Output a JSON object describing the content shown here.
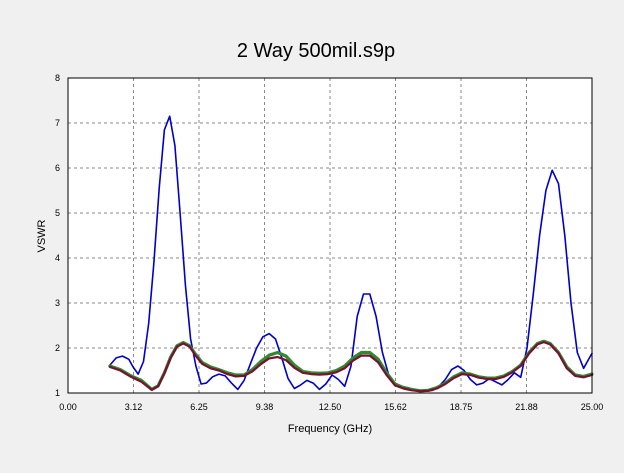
{
  "chart_data": {
    "type": "line",
    "title": "2 Way 500mil.s9p",
    "xlabel": "Frequency (GHz)",
    "ylabel": "VSWR",
    "xlim": [
      0,
      25
    ],
    "ylim": [
      1,
      8
    ],
    "grid": true,
    "x_ticks": [
      "0.00",
      "3.12",
      "6.25",
      "9.38",
      "12.50",
      "15.62",
      "18.75",
      "21.88",
      "25.00"
    ],
    "y_ticks": [
      "1",
      "2",
      "3",
      "4",
      "5",
      "6",
      "7",
      "8"
    ],
    "series": [
      {
        "color": "#0000cc",
        "points": [
          [
            2.0,
            1.62
          ],
          [
            2.3,
            1.78
          ],
          [
            2.6,
            1.82
          ],
          [
            2.9,
            1.75
          ],
          [
            3.1,
            1.58
          ],
          [
            3.35,
            1.42
          ],
          [
            3.6,
            1.7
          ],
          [
            3.85,
            2.55
          ],
          [
            4.1,
            3.9
          ],
          [
            4.35,
            5.55
          ],
          [
            4.6,
            6.85
          ],
          [
            4.85,
            7.15
          ],
          [
            5.1,
            6.5
          ],
          [
            5.35,
            5.0
          ],
          [
            5.6,
            3.4
          ],
          [
            5.85,
            2.2
          ],
          [
            6.1,
            1.6
          ],
          [
            6.35,
            1.2
          ],
          [
            6.6,
            1.22
          ],
          [
            6.9,
            1.36
          ],
          [
            7.2,
            1.42
          ],
          [
            7.5,
            1.38
          ],
          [
            7.8,
            1.22
          ],
          [
            8.1,
            1.08
          ],
          [
            8.4,
            1.28
          ],
          [
            8.7,
            1.65
          ],
          [
            9.0,
            2.0
          ],
          [
            9.3,
            2.25
          ],
          [
            9.6,
            2.32
          ],
          [
            9.9,
            2.2
          ],
          [
            10.2,
            1.78
          ],
          [
            10.5,
            1.32
          ],
          [
            10.8,
            1.1
          ],
          [
            11.1,
            1.18
          ],
          [
            11.4,
            1.28
          ],
          [
            11.7,
            1.22
          ],
          [
            12.0,
            1.08
          ],
          [
            12.3,
            1.2
          ],
          [
            12.6,
            1.4
          ],
          [
            12.9,
            1.3
          ],
          [
            13.2,
            1.15
          ],
          [
            13.5,
            1.6
          ],
          [
            13.8,
            2.7
          ],
          [
            14.1,
            3.2
          ],
          [
            14.4,
            3.2
          ],
          [
            14.7,
            2.7
          ],
          [
            15.0,
            1.9
          ],
          [
            15.3,
            1.4
          ],
          [
            15.6,
            1.2
          ],
          [
            15.9,
            1.15
          ],
          [
            16.2,
            1.12
          ],
          [
            16.5,
            1.08
          ],
          [
            16.8,
            1.05
          ],
          [
            17.1,
            1.04
          ],
          [
            17.4,
            1.06
          ],
          [
            17.7,
            1.15
          ],
          [
            18.0,
            1.3
          ],
          [
            18.3,
            1.52
          ],
          [
            18.6,
            1.6
          ],
          [
            18.9,
            1.5
          ],
          [
            19.2,
            1.3
          ],
          [
            19.5,
            1.18
          ],
          [
            19.8,
            1.22
          ],
          [
            20.1,
            1.32
          ],
          [
            20.4,
            1.25
          ],
          [
            20.7,
            1.18
          ],
          [
            21.0,
            1.3
          ],
          [
            21.3,
            1.45
          ],
          [
            21.6,
            1.35
          ],
          [
            21.9,
            2.0
          ],
          [
            22.2,
            3.2
          ],
          [
            22.5,
            4.5
          ],
          [
            22.8,
            5.5
          ],
          [
            23.1,
            5.95
          ],
          [
            23.4,
            5.65
          ],
          [
            23.7,
            4.5
          ],
          [
            24.0,
            3.0
          ],
          [
            24.3,
            1.9
          ],
          [
            24.6,
            1.55
          ],
          [
            24.9,
            1.8
          ],
          [
            25.0,
            1.88
          ]
        ]
      },
      {
        "color": "#2f8a2f",
        "points": [
          [
            2.0,
            1.6
          ],
          [
            2.5,
            1.52
          ],
          [
            3.0,
            1.38
          ],
          [
            3.5,
            1.28
          ],
          [
            4.0,
            1.08
          ],
          [
            4.3,
            1.16
          ],
          [
            4.6,
            1.45
          ],
          [
            4.9,
            1.8
          ],
          [
            5.2,
            2.05
          ],
          [
            5.5,
            2.12
          ],
          [
            5.8,
            2.05
          ],
          [
            6.1,
            1.85
          ],
          [
            6.4,
            1.68
          ],
          [
            6.8,
            1.58
          ],
          [
            7.2,
            1.52
          ],
          [
            7.6,
            1.45
          ],
          [
            8.0,
            1.4
          ],
          [
            8.4,
            1.4
          ],
          [
            8.8,
            1.52
          ],
          [
            9.2,
            1.7
          ],
          [
            9.6,
            1.84
          ],
          [
            10.0,
            1.9
          ],
          [
            10.4,
            1.82
          ],
          [
            10.8,
            1.62
          ],
          [
            11.2,
            1.48
          ],
          [
            11.6,
            1.45
          ],
          [
            12.0,
            1.44
          ],
          [
            12.4,
            1.45
          ],
          [
            12.8,
            1.5
          ],
          [
            13.2,
            1.6
          ],
          [
            13.6,
            1.78
          ],
          [
            14.0,
            1.9
          ],
          [
            14.4,
            1.9
          ],
          [
            14.8,
            1.75
          ],
          [
            15.2,
            1.45
          ],
          [
            15.6,
            1.2
          ],
          [
            16.0,
            1.12
          ],
          [
            16.4,
            1.08
          ],
          [
            16.8,
            1.05
          ],
          [
            17.2,
            1.06
          ],
          [
            17.6,
            1.12
          ],
          [
            18.0,
            1.22
          ],
          [
            18.4,
            1.36
          ],
          [
            18.8,
            1.45
          ],
          [
            19.2,
            1.42
          ],
          [
            19.6,
            1.36
          ],
          [
            20.0,
            1.33
          ],
          [
            20.4,
            1.33
          ],
          [
            20.8,
            1.38
          ],
          [
            21.2,
            1.48
          ],
          [
            21.6,
            1.62
          ],
          [
            22.0,
            1.9
          ],
          [
            22.4,
            2.1
          ],
          [
            22.7,
            2.15
          ],
          [
            23.0,
            2.1
          ],
          [
            23.4,
            1.9
          ],
          [
            23.8,
            1.58
          ],
          [
            24.2,
            1.4
          ],
          [
            24.6,
            1.37
          ],
          [
            25.0,
            1.42
          ]
        ]
      },
      {
        "color": "#7a1030",
        "points": [
          [
            2.0,
            1.58
          ],
          [
            2.5,
            1.5
          ],
          [
            3.0,
            1.36
          ],
          [
            3.5,
            1.25
          ],
          [
            4.0,
            1.07
          ],
          [
            4.3,
            1.15
          ],
          [
            4.6,
            1.44
          ],
          [
            4.9,
            1.78
          ],
          [
            5.2,
            2.03
          ],
          [
            5.5,
            2.1
          ],
          [
            5.8,
            2.03
          ],
          [
            6.1,
            1.82
          ],
          [
            6.4,
            1.65
          ],
          [
            6.8,
            1.55
          ],
          [
            7.2,
            1.5
          ],
          [
            7.6,
            1.42
          ],
          [
            8.0,
            1.37
          ],
          [
            8.4,
            1.38
          ],
          [
            8.8,
            1.48
          ],
          [
            9.2,
            1.64
          ],
          [
            9.6,
            1.77
          ],
          [
            10.0,
            1.8
          ],
          [
            10.4,
            1.73
          ],
          [
            10.8,
            1.56
          ],
          [
            11.2,
            1.45
          ],
          [
            11.6,
            1.42
          ],
          [
            12.0,
            1.41
          ],
          [
            12.4,
            1.42
          ],
          [
            12.8,
            1.46
          ],
          [
            13.2,
            1.55
          ],
          [
            13.6,
            1.72
          ],
          [
            14.0,
            1.83
          ],
          [
            14.4,
            1.83
          ],
          [
            14.8,
            1.68
          ],
          [
            15.2,
            1.4
          ],
          [
            15.6,
            1.17
          ],
          [
            16.0,
            1.1
          ],
          [
            16.4,
            1.06
          ],
          [
            16.8,
            1.04
          ],
          [
            17.2,
            1.05
          ],
          [
            17.6,
            1.1
          ],
          [
            18.0,
            1.2
          ],
          [
            18.4,
            1.33
          ],
          [
            18.8,
            1.42
          ],
          [
            19.2,
            1.4
          ],
          [
            19.6,
            1.34
          ],
          [
            20.0,
            1.31
          ],
          [
            20.4,
            1.31
          ],
          [
            20.8,
            1.36
          ],
          [
            21.2,
            1.46
          ],
          [
            21.6,
            1.6
          ],
          [
            22.0,
            1.88
          ],
          [
            22.4,
            2.08
          ],
          [
            22.7,
            2.13
          ],
          [
            23.0,
            2.08
          ],
          [
            23.4,
            1.88
          ],
          [
            23.8,
            1.55
          ],
          [
            24.2,
            1.38
          ],
          [
            24.6,
            1.35
          ],
          [
            25.0,
            1.4
          ]
        ]
      }
    ]
  }
}
